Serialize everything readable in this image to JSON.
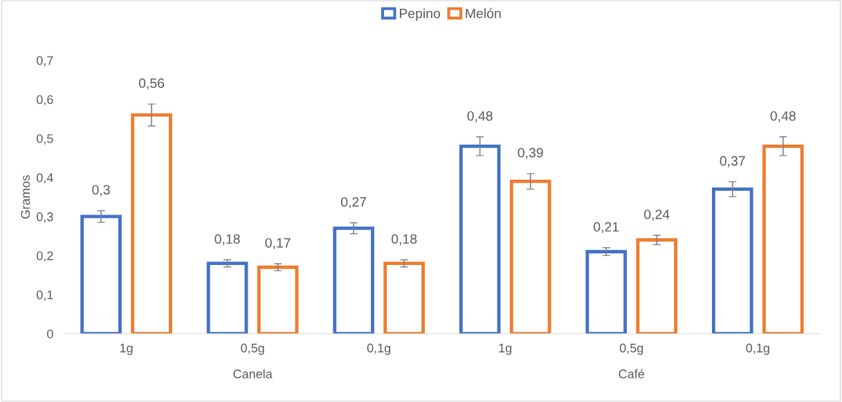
{
  "chart_data": {
    "type": "bar",
    "ylabel": "Gramos",
    "categories": [
      "1g",
      "0,5g",
      "0,1g",
      "1g",
      "0,5g",
      "0,1g"
    ],
    "series": [
      {
        "name": "Pepino",
        "color": "#4472c4",
        "values": [
          0.3,
          0.18,
          0.27,
          0.48,
          0.21,
          0.37
        ],
        "errors": [
          0.015,
          0.009,
          0.014,
          0.024,
          0.01,
          0.019
        ],
        "value_labels": [
          "0,3",
          "0,18",
          "0,27",
          "0,48",
          "0,21",
          "0,37"
        ]
      },
      {
        "name": "Melón",
        "color": "#ed7d31",
        "values": [
          0.56,
          0.17,
          0.18,
          0.39,
          0.24,
          0.48
        ],
        "errors": [
          0.028,
          0.009,
          0.009,
          0.02,
          0.012,
          0.024
        ],
        "value_labels": [
          "0,56",
          "0,17",
          "0,18",
          "0,39",
          "0,24",
          "0,48"
        ]
      }
    ],
    "ylim": [
      0,
      0.7
    ],
    "yticks": [
      0,
      {
        "value": 0.1,
        "label": "0,1"
      },
      {
        "value": 0.2,
        "label": "0,2"
      },
      {
        "value": 0.3,
        "label": "0,3"
      },
      {
        "value": 0.4,
        "label": "0,4"
      },
      {
        "value": 0.5,
        "label": "0,5"
      },
      {
        "value": 0.6,
        "label": "0,6"
      },
      {
        "value": 0.7,
        "label": "0,7"
      }
    ],
    "annotations": [
      "Canela",
      "Café"
    ],
    "legend": "top",
    "grid": false
  }
}
